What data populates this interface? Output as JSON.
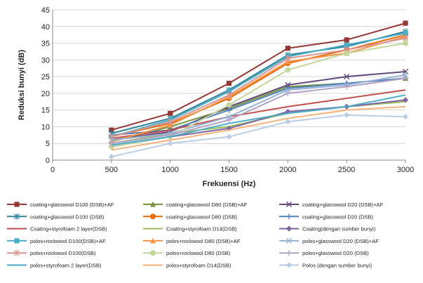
{
  "chart_data": {
    "type": "line",
    "title": "",
    "xlabel": "Frekuensi (Hz)",
    "ylabel": "Reduksi bunyi (dB)",
    "x": [
      500,
      1000,
      1500,
      2000,
      2500,
      3000
    ],
    "xlim": [
      0,
      3000
    ],
    "xticks": [
      "0",
      "500",
      "1000",
      "1500",
      "2000",
      "2500",
      "3000"
    ],
    "ylim": [
      0,
      45
    ],
    "yticks": [
      "0",
      "5",
      "10",
      "15",
      "20",
      "25",
      "30",
      "35",
      "40",
      "45"
    ],
    "grid": "horizontal",
    "legend_position": "bottom",
    "series": [
      {
        "name": "coating+glasswool D100 (DSB)+AF",
        "color": "#953735",
        "marker": "square",
        "values": [
          9,
          14,
          23,
          33.5,
          36,
          41
        ]
      },
      {
        "name": "coating+glasswool D80 (DSB)+AF",
        "color": "#77933c",
        "marker": "triangle",
        "values": [
          5.5,
          10,
          15.5,
          22,
          23,
          24.5
        ]
      },
      {
        "name": "coating+glasswool D20 (DSB)+AF",
        "color": "#604a7b",
        "marker": "x",
        "values": [
          6,
          8.5,
          16,
          22.5,
          25,
          26.5
        ]
      },
      {
        "name": "coating+glasswool D100 (DSB)",
        "color": "#31859c",
        "marker": "star",
        "values": [
          8,
          12.5,
          21,
          31.5,
          34,
          38.5
        ]
      },
      {
        "name": "coating+glasswool D80 (DSB)",
        "color": "#e46c0a",
        "marker": "circle",
        "values": [
          7,
          11,
          18.5,
          29,
          33,
          37.5
        ]
      },
      {
        "name": "coating+glasswool D20 (DSB)",
        "color": "#4f81bd",
        "marker": "plus",
        "values": [
          7.5,
          9,
          15,
          21.5,
          23,
          24.5
        ]
      },
      {
        "name": "Coating+styrofoam 2 layer(DSB)",
        "color": "#c0504d",
        "marker": "none",
        "values": [
          6.5,
          9,
          13,
          16,
          18.5,
          21
        ]
      },
      {
        "name": "Coating+styrofoam D14(DSB)",
        "color": "#9bbb59",
        "marker": "none",
        "values": [
          5,
          8,
          10,
          14,
          16,
          17.5
        ]
      },
      {
        "name": "Coating(dengan sumber bunyi)",
        "color": "#8064a2",
        "marker": "diamond",
        "values": [
          4,
          7,
          9.5,
          14.5,
          16,
          18
        ]
      },
      {
        "name": "polos+rockwool D100(DSB)+AF",
        "color": "#4bacc6",
        "marker": "square",
        "values": [
          7,
          12,
          20.5,
          31,
          34.5,
          38
        ]
      },
      {
        "name": "polos+rockwool D80 (DSB)+AF",
        "color": "#f79646",
        "marker": "triangle",
        "values": [
          5.5,
          10.5,
          19,
          29.5,
          32,
          37
        ]
      },
      {
        "name": "polos+glasswool D20 (DSB)+AF",
        "color": "#95b3d7",
        "marker": "x",
        "values": [
          6,
          8,
          13,
          21,
          22.5,
          25.5
        ]
      },
      {
        "name": "polos+rockwool D100(DSB)",
        "color": "#d99694",
        "marker": "star",
        "values": [
          7,
          11.5,
          19.5,
          30.5,
          33,
          36.5
        ]
      },
      {
        "name": "polos+rockwool D80 (DSB)",
        "color": "#c3d69b",
        "marker": "circle",
        "values": [
          4,
          7,
          16.5,
          27,
          32,
          35
        ]
      },
      {
        "name": "polos+glasswool D20 (DSB)",
        "color": "#b3a2c7",
        "marker": "plus",
        "values": [
          5,
          7.5,
          12,
          20,
          22,
          24.5
        ]
      },
      {
        "name": "polos+styrofoam 2 layer(DSB)",
        "color": "#4bacc6",
        "marker": "none",
        "values": [
          4.5,
          7,
          11,
          14,
          16,
          19.5
        ]
      },
      {
        "name": "polos+styrofoam D14(DSB)",
        "color": "#f5b27a",
        "marker": "none",
        "values": [
          3,
          6,
          9,
          12.5,
          15,
          16
        ]
      },
      {
        "name": "Polos (dengan sumber bunyi)",
        "color": "#b9cde5",
        "marker": "diamond",
        "values": [
          1,
          5,
          7,
          11.5,
          13.5,
          13
        ]
      }
    ]
  }
}
